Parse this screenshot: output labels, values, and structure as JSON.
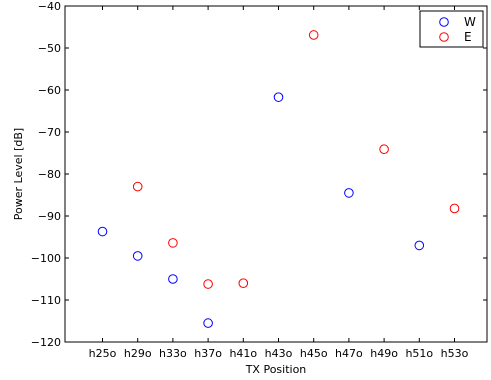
{
  "chart_data": {
    "type": "scatter",
    "title": "",
    "xlabel": "TX Position",
    "ylabel": "Power Level [dB]",
    "categories": [
      "h25o",
      "h29o",
      "h33o",
      "h37o",
      "h41o",
      "h43o",
      "h45o",
      "h47o",
      "h49o",
      "h51o",
      "h53o"
    ],
    "ylim": [
      -120,
      -40
    ],
    "yticks": [
      -120,
      -110,
      -100,
      -90,
      -80,
      -70,
      -60,
      -50,
      -40
    ],
    "ytick_labels": [
      "−120",
      "−110",
      "−100",
      "−90",
      "−80",
      "−70",
      "−60",
      "−50",
      "−40"
    ],
    "grid": false,
    "legend_position": "top-right",
    "series": [
      {
        "name": "W",
        "color": "#0000ff",
        "marker": "circle-open",
        "points": [
          {
            "x": "h25o",
            "y": -93.7
          },
          {
            "x": "h29o",
            "y": -99.5
          },
          {
            "x": "h33o",
            "y": -105.0
          },
          {
            "x": "h37o",
            "y": -115.5
          },
          {
            "x": "h43o",
            "y": -61.7
          },
          {
            "x": "h47o",
            "y": -84.5
          },
          {
            "x": "h51o",
            "y": -97.0
          }
        ]
      },
      {
        "name": "E",
        "color": "#ff0000",
        "marker": "circle-open",
        "points": [
          {
            "x": "h29o",
            "y": -83.0
          },
          {
            "x": "h33o",
            "y": -96.4
          },
          {
            "x": "h37o",
            "y": -106.2
          },
          {
            "x": "h41o",
            "y": -106.0
          },
          {
            "x": "h45o",
            "y": -46.9
          },
          {
            "x": "h49o",
            "y": -74.1
          },
          {
            "x": "h53o",
            "y": -88.2
          }
        ]
      }
    ]
  }
}
